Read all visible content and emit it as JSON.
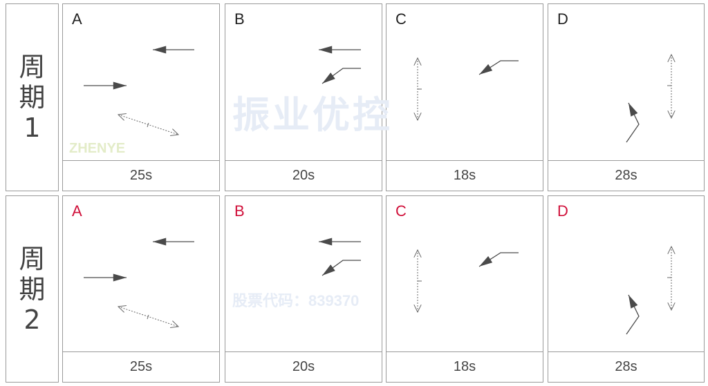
{
  "rows": [
    {
      "label_chars": [
        "周",
        "期",
        "1"
      ],
      "phases": [
        {
          "label": "A",
          "time": "25s",
          "type": "A"
        },
        {
          "label": "B",
          "time": "20s",
          "type": "B"
        },
        {
          "label": "C",
          "time": "18s",
          "type": "C"
        },
        {
          "label": "D",
          "time": "28s",
          "type": "D"
        }
      ],
      "label_color": "#222222"
    },
    {
      "label_chars": [
        "周",
        "期",
        "2"
      ],
      "phases": [
        {
          "label": "A",
          "time": "25s",
          "type": "A"
        },
        {
          "label": "B",
          "time": "20s",
          "type": "B"
        },
        {
          "label": "C",
          "time": "18s",
          "type": "C"
        },
        {
          "label": "D",
          "time": "28s",
          "type": "D"
        }
      ],
      "label_color": "#d0103a"
    }
  ],
  "watermark": {
    "brand": "振业优控",
    "stock": "股票代码：839370",
    "logo_text": "ZHENYE"
  },
  "colors": {
    "arrow": "#4a4a4a",
    "border": "#9a9a9a"
  }
}
